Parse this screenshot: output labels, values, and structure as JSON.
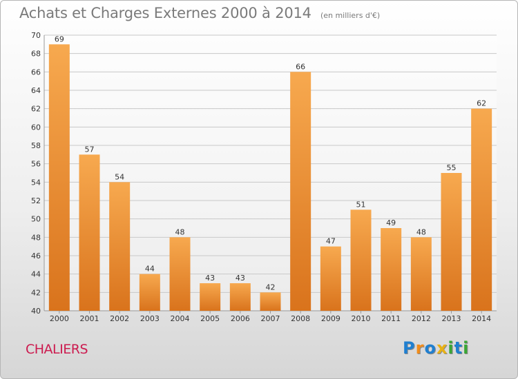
{
  "title": "Achats et Charges Externes 2000 à 2014",
  "subtitle": "(en milliers d'€)",
  "commune": "CHALIERS",
  "logo": {
    "text": "Proxiti",
    "letters": [
      {
        "ch": "P",
        "color": "#1f7fd0"
      },
      {
        "ch": "r",
        "color": "#f28c1a"
      },
      {
        "ch": "o",
        "color": "#1f7fd0"
      },
      {
        "ch": "x",
        "color": "#e8b114"
      },
      {
        "ch": "i",
        "color": "#3aa635"
      },
      {
        "ch": "t",
        "color": "#1f7fd0"
      },
      {
        "ch": "i",
        "color": "#3aa635"
      }
    ]
  },
  "colors": {
    "bar_light": "#f7a94f",
    "bar_dark": "#d9731c",
    "grid": "#c8c8c8",
    "axis_text": "#333333",
    "commune": "#cc1b4f"
  },
  "chart_data": {
    "type": "bar",
    "categories": [
      "2000",
      "2001",
      "2002",
      "2003",
      "2004",
      "2005",
      "2006",
      "2007",
      "2008",
      "2009",
      "2010",
      "2011",
      "2012",
      "2013",
      "2014"
    ],
    "values": [
      69,
      57,
      54,
      44,
      48,
      43,
      43,
      42,
      66,
      47,
      51,
      49,
      48,
      55,
      62
    ],
    "ylim": [
      40,
      70
    ],
    "yticks": [
      40,
      42,
      44,
      46,
      48,
      50,
      52,
      54,
      56,
      58,
      60,
      62,
      64,
      66,
      68,
      70
    ],
    "grid": true,
    "legend": "none"
  }
}
